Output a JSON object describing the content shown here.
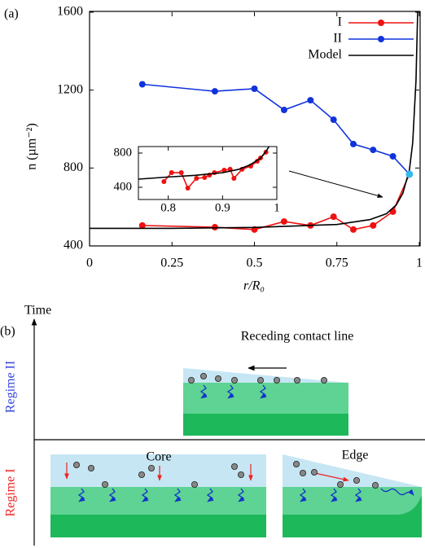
{
  "chart_data": [
    {
      "type": "line",
      "panel_label": "(a)",
      "xlabel": "r/R₀",
      "ylabel": "n (µm⁻²)",
      "xlim": [
        0,
        1
      ],
      "ylim": [
        400,
        1600
      ],
      "xticks": [
        0,
        0.25,
        0.5,
        0.75,
        1
      ],
      "yticks": [
        400,
        800,
        1200,
        1600
      ],
      "legend": "upper right",
      "series": [
        {
          "name": "I",
          "color": "#ee1111",
          "marker": true,
          "x": [
            0.16,
            0.38,
            0.5,
            0.59,
            0.67,
            0.74,
            0.8,
            0.86,
            0.92,
            0.97
          ],
          "values": [
            505,
            496,
            484,
            525,
            505,
            550,
            484,
            505,
            576,
            768
          ]
        },
        {
          "name": "II",
          "color": "#1133dd",
          "marker": true,
          "x": [
            0.16,
            0.38,
            0.5,
            0.59,
            0.67,
            0.74,
            0.8,
            0.86,
            0.92,
            0.97
          ],
          "values": [
            1230,
            1194,
            1207,
            1098,
            1148,
            1048,
            923,
            893,
            860,
            768
          ]
        },
        {
          "name": "Model",
          "color": "#000000",
          "marker": false,
          "x": [
            0,
            0.25,
            0.5,
            0.75,
            0.85,
            0.9,
            0.93,
            0.95,
            0.97,
            0.98,
            0.99,
            0.995
          ],
          "values": [
            490,
            490,
            495,
            510,
            535,
            565,
            610,
            670,
            790,
            930,
            1250,
            1600
          ]
        }
      ],
      "highlight": {
        "x": 0.97,
        "y": 768,
        "color": "#33bbee"
      }
    },
    {
      "type": "line",
      "xlim": [
        0.745,
        1
      ],
      "ylim": [
        257,
        876
      ],
      "xticks": [
        0.8,
        0.9,
        1
      ],
      "yticks": [
        400,
        800
      ],
      "series": [
        {
          "color": "#ee1111",
          "marker": true,
          "x": [
            0.792,
            0.806,
            0.824,
            0.836,
            0.852,
            0.867,
            0.876,
            0.885,
            0.903,
            0.914,
            0.921,
            0.936,
            0.952,
            0.964,
            0.97,
            0.98
          ],
          "values": [
            467,
            571,
            571,
            390,
            505,
            514,
            543,
            571,
            600,
            610,
            505,
            610,
            648,
            705,
            743,
            810
          ]
        },
        {
          "color": "#000000",
          "marker": false,
          "x": [
            0.745,
            0.8,
            0.85,
            0.9,
            0.93,
            0.95,
            0.97,
            0.98,
            0.99
          ],
          "values": [
            495,
            520,
            540,
            570,
            610,
            660,
            740,
            820,
            920
          ]
        }
      ]
    }
  ],
  "diagram": {
    "panel_label": "(b)",
    "axis_label": "Time",
    "regime_2": "Regime II",
    "regime_1": "Regime I",
    "receding": "Receding contact line",
    "core": "Core",
    "edge": "Edge"
  }
}
